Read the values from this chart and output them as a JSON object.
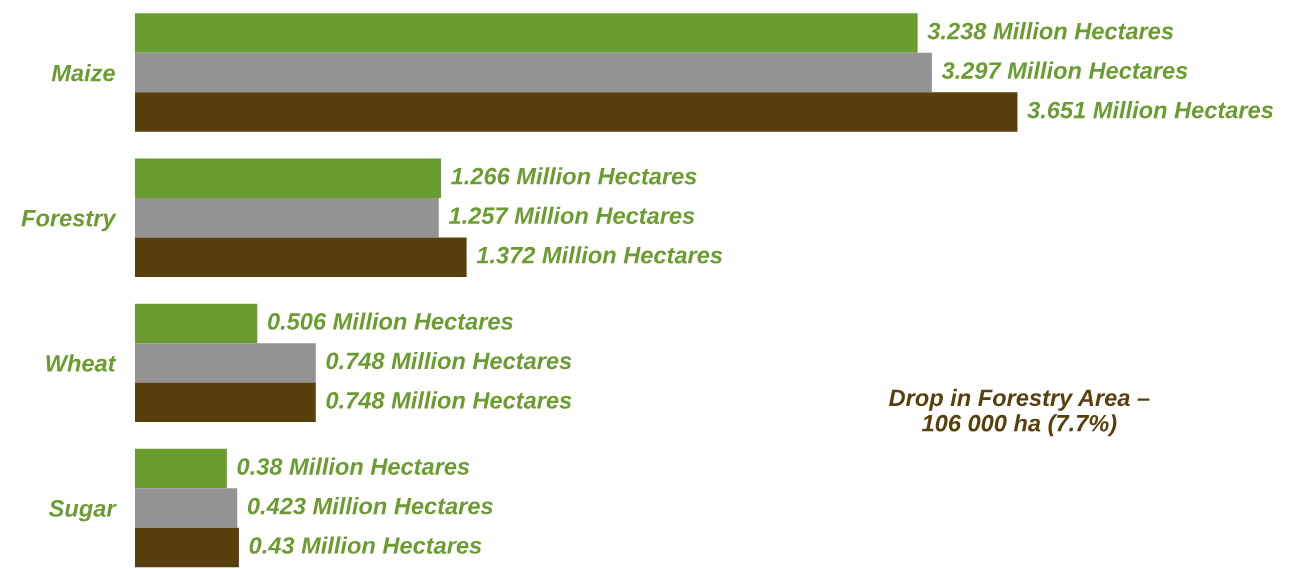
{
  "chart_data": {
    "type": "bar",
    "orientation": "horizontal",
    "categories": [
      "Maize",
      "Forestry",
      "Wheat",
      "Sugar"
    ],
    "series": [
      {
        "color": "#6b9c30",
        "values": [
          3.238,
          1.266,
          0.506,
          0.38
        ],
        "value_labels": [
          "3.238 Million Hectares",
          "1.266 Million Hectares",
          "0.506 Million Hectares",
          "0.38 Million Hectares"
        ]
      },
      {
        "color": "#939395",
        "values": [
          3.297,
          1.257,
          0.748,
          0.423
        ],
        "value_labels": [
          "3.297 Million Hectares",
          "1.257 Million Hectares",
          "0.748 Million Hectares",
          "0.423 Million Hectares"
        ]
      },
      {
        "color": "#58400c",
        "values": [
          3.651,
          1.372,
          0.748,
          0.43
        ],
        "value_labels": [
          "3.651 Million Hectares",
          "1.372 Million Hectares",
          "0.748 Million Hectares",
          "0.43 Million Hectares"
        ]
      }
    ],
    "tick_labels": "y",
    "grid": false,
    "annotations": [
      "Drop in Forestry Area –\n106 000 ha (7.7%)"
    ]
  }
}
